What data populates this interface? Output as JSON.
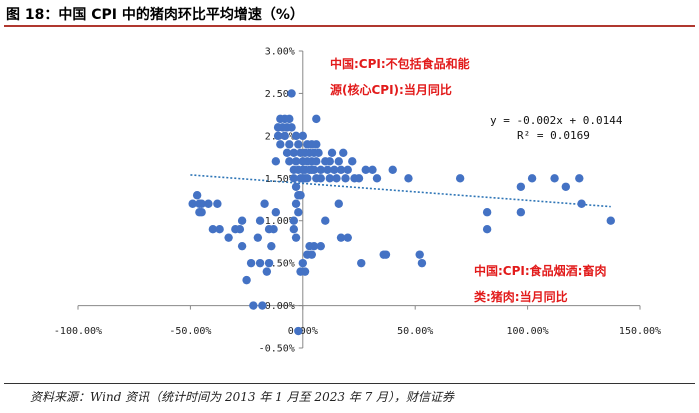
{
  "title": "图 18：中国 CPI 中的猪肉环比平均增速（%）",
  "source": "资料来源：Wind 资讯（统计时间为 2013 年 1 月至 2023 年 7 月），财信证券",
  "colors": {
    "point": "#4472c4",
    "trendline": "#2e75b6",
    "annotation": "#e21b1b",
    "title_rule": "#b0382f"
  },
  "chart_data": {
    "type": "scatter",
    "xlim": [
      -1.0,
      1.5
    ],
    "ylim": [
      -0.005,
      0.03
    ],
    "x_ticks": [
      "-100.00%",
      "-50.00%",
      "0.00%",
      "50.00%",
      "100.00%",
      "150.00%"
    ],
    "y_ticks": [
      "3.00%",
      "2.50%",
      "2.00%",
      "1.50%",
      "1.00%",
      "0.50%",
      "0.00%",
      "-0.50%"
    ],
    "annotations": [
      {
        "lines": [
          "中国:CPI:不包括食品和能",
          "源(核心CPI):当月同比"
        ]
      },
      {
        "lines": [
          "中国:CPI:食品烟酒:畜肉",
          "类:猪肉:当月同比"
        ]
      }
    ],
    "trendline": {
      "slope": -0.002,
      "intercept": 0.0144,
      "equation": "y = -0.002x + 0.0144",
      "r_squared": "R² = 0.0169"
    },
    "points": [
      [
        -0.49,
        0.012
      ],
      [
        -0.47,
        0.013
      ],
      [
        -0.46,
        0.012
      ],
      [
        -0.45,
        0.012
      ],
      [
        -0.46,
        0.011
      ],
      [
        -0.45,
        0.011
      ],
      [
        -0.42,
        0.012
      ],
      [
        -0.38,
        0.012
      ],
      [
        -0.4,
        0.009
      ],
      [
        -0.37,
        0.009
      ],
      [
        -0.33,
        0.008
      ],
      [
        -0.3,
        0.009
      ],
      [
        -0.28,
        0.009
      ],
      [
        -0.27,
        0.007
      ],
      [
        -0.27,
        0.01
      ],
      [
        -0.25,
        0.003
      ],
      [
        -0.23,
        0.005
      ],
      [
        -0.22,
        0.0
      ],
      [
        -0.2,
        0.008
      ],
      [
        -0.19,
        0.01
      ],
      [
        -0.19,
        0.005
      ],
      [
        -0.18,
        0.0
      ],
      [
        -0.17,
        0.012
      ],
      [
        -0.16,
        0.004
      ],
      [
        -0.15,
        0.009
      ],
      [
        -0.15,
        0.005
      ],
      [
        -0.14,
        0.007
      ],
      [
        -0.13,
        0.009
      ],
      [
        -0.12,
        0.011
      ],
      [
        -0.12,
        0.017
      ],
      [
        -0.11,
        0.02
      ],
      [
        -0.11,
        0.021
      ],
      [
        -0.1,
        0.022
      ],
      [
        -0.1,
        0.019
      ],
      [
        -0.09,
        0.021
      ],
      [
        -0.08,
        0.02
      ],
      [
        -0.08,
        0.022
      ],
      [
        -0.07,
        0.018
      ],
      [
        -0.07,
        0.021
      ],
      [
        -0.06,
        0.022
      ],
      [
        -0.06,
        0.019
      ],
      [
        -0.06,
        0.017
      ],
      [
        -0.05,
        0.025
      ],
      [
        -0.05,
        0.021
      ],
      [
        -0.04,
        0.018
      ],
      [
        -0.04,
        0.016
      ],
      [
        -0.04,
        0.015
      ],
      [
        -0.04,
        0.01
      ],
      [
        -0.04,
        0.009
      ],
      [
        -0.03,
        0.02
      ],
      [
        -0.03,
        0.017
      ],
      [
        -0.03,
        0.014
      ],
      [
        -0.03,
        0.012
      ],
      [
        -0.03,
        0.008
      ],
      [
        -0.02,
        0.019
      ],
      [
        -0.02,
        0.016
      ],
      [
        -0.02,
        0.013
      ],
      [
        -0.02,
        0.011
      ],
      [
        -0.02,
        -0.003
      ],
      [
        -0.01,
        0.018
      ],
      [
        -0.01,
        0.015
      ],
      [
        -0.01,
        0.013
      ],
      [
        -0.01,
        0.004
      ],
      [
        0.0,
        0.02
      ],
      [
        0.0,
        0.017
      ],
      [
        0.0,
        0.016
      ],
      [
        0.0,
        0.015
      ],
      [
        0.0,
        0.005
      ],
      [
        0.01,
        0.018
      ],
      [
        0.01,
        0.016
      ],
      [
        0.01,
        0.015
      ],
      [
        0.01,
        0.004
      ],
      [
        0.02,
        0.019
      ],
      [
        0.02,
        0.017
      ],
      [
        0.02,
        0.015
      ],
      [
        0.02,
        0.006
      ],
      [
        0.03,
        0.018
      ],
      [
        0.03,
        0.016
      ],
      [
        0.03,
        0.007
      ],
      [
        0.04,
        0.019
      ],
      [
        0.04,
        0.017
      ],
      [
        0.04,
        0.016
      ],
      [
        0.04,
        0.006
      ],
      [
        0.05,
        0.018
      ],
      [
        0.05,
        0.016
      ],
      [
        0.05,
        0.007
      ],
      [
        0.06,
        0.019
      ],
      [
        0.06,
        0.017
      ],
      [
        0.06,
        0.015
      ],
      [
        0.06,
        0.022
      ],
      [
        0.07,
        0.018
      ],
      [
        0.08,
        0.016
      ],
      [
        0.08,
        0.015
      ],
      [
        0.08,
        0.007
      ],
      [
        0.1,
        0.017
      ],
      [
        0.1,
        0.01
      ],
      [
        0.11,
        0.016
      ],
      [
        0.12,
        0.017
      ],
      [
        0.12,
        0.015
      ],
      [
        0.13,
        0.018
      ],
      [
        0.14,
        0.016
      ],
      [
        0.15,
        0.015
      ],
      [
        0.16,
        0.017
      ],
      [
        0.16,
        0.012
      ],
      [
        0.17,
        0.016
      ],
      [
        0.17,
        0.008
      ],
      [
        0.18,
        0.018
      ],
      [
        0.19,
        0.015
      ],
      [
        0.2,
        0.016
      ],
      [
        0.2,
        0.008
      ],
      [
        0.22,
        0.017
      ],
      [
        0.23,
        0.015
      ],
      [
        0.25,
        0.015
      ],
      [
        0.26,
        0.005
      ],
      [
        0.28,
        0.016
      ],
      [
        0.31,
        0.016
      ],
      [
        0.33,
        0.015
      ],
      [
        0.36,
        0.006
      ],
      [
        0.37,
        0.006
      ],
      [
        0.4,
        0.016
      ],
      [
        0.47,
        0.015
      ],
      [
        0.52,
        0.006
      ],
      [
        0.53,
        0.005
      ],
      [
        0.7,
        0.015
      ],
      [
        0.82,
        0.011
      ],
      [
        0.82,
        0.009
      ],
      [
        0.97,
        0.014
      ],
      [
        0.97,
        0.011
      ],
      [
        1.02,
        0.015
      ],
      [
        1.12,
        0.015
      ],
      [
        1.17,
        0.014
      ],
      [
        1.23,
        0.015
      ],
      [
        1.24,
        0.012
      ],
      [
        1.37,
        0.01
      ]
    ]
  }
}
